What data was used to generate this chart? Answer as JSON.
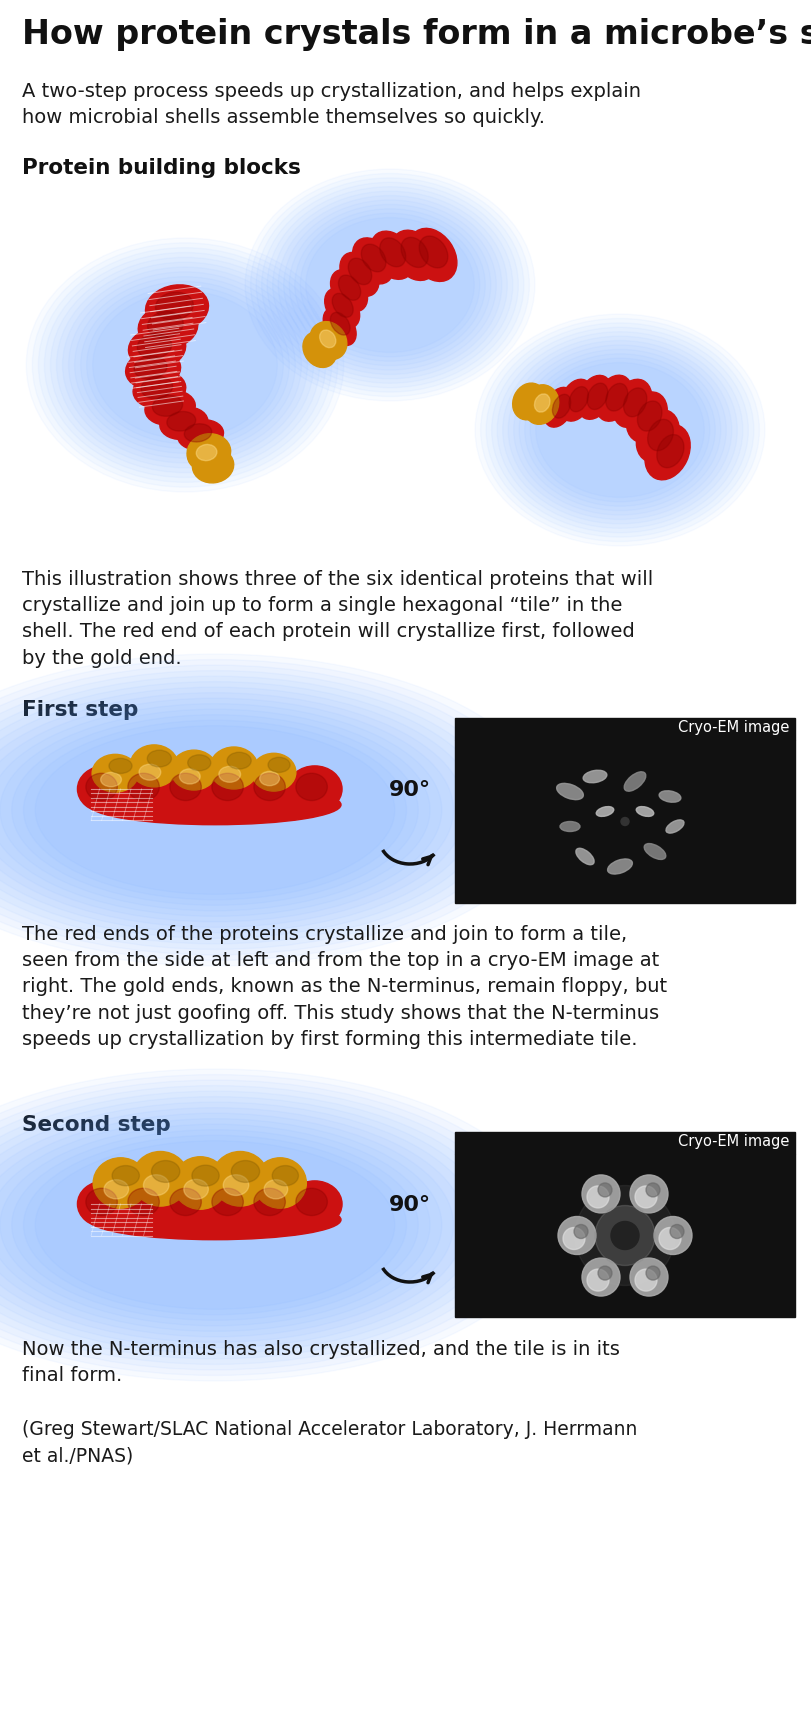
{
  "title": "How protein crystals form in a microbe’s shell",
  "subtitle": "A two-step process speeds up crystallization, and helps explain\nhow microbial shells assemble themselves so quickly.",
  "section1_header": "Protein building blocks",
  "section1_caption": "This illustration shows three of the six identical proteins that will\ncrystallize and join up to form a single hexagonal “tile” in the\nshell. The red end of each protein will crystallize first, followed\nby the gold end.",
  "section2_header": "First step",
  "section2_caption": "The red ends of the proteins crystallize and join to form a tile,\nseen from the side at left and from the top in a cryo-EM image at\nright. The gold ends, known as the N-terminus, remain floppy, but\nthey’re not just goofing off. This study shows that the N-terminus\nspeeds up crystallization by first forming this intermediate tile.",
  "section3_header": "Second step",
  "section3_caption": "Now the N-terminus has also crystallized, and the tile is in its\nfinal form.",
  "attribution": "(Greg Stewart/SLAC National Accelerator Laboratory, J. Herrmann\net al./PNAS)",
  "bg_color": "#ffffff",
  "title_color": "#111111",
  "header_color": "#111111",
  "body_color": "#1a1a1a",
  "red_protein": "#cc1111",
  "gold_protein": "#d4920a",
  "glow_color": "#5599ff",
  "cryo_label": "Cryo-EM image",
  "angle_label": "90°"
}
